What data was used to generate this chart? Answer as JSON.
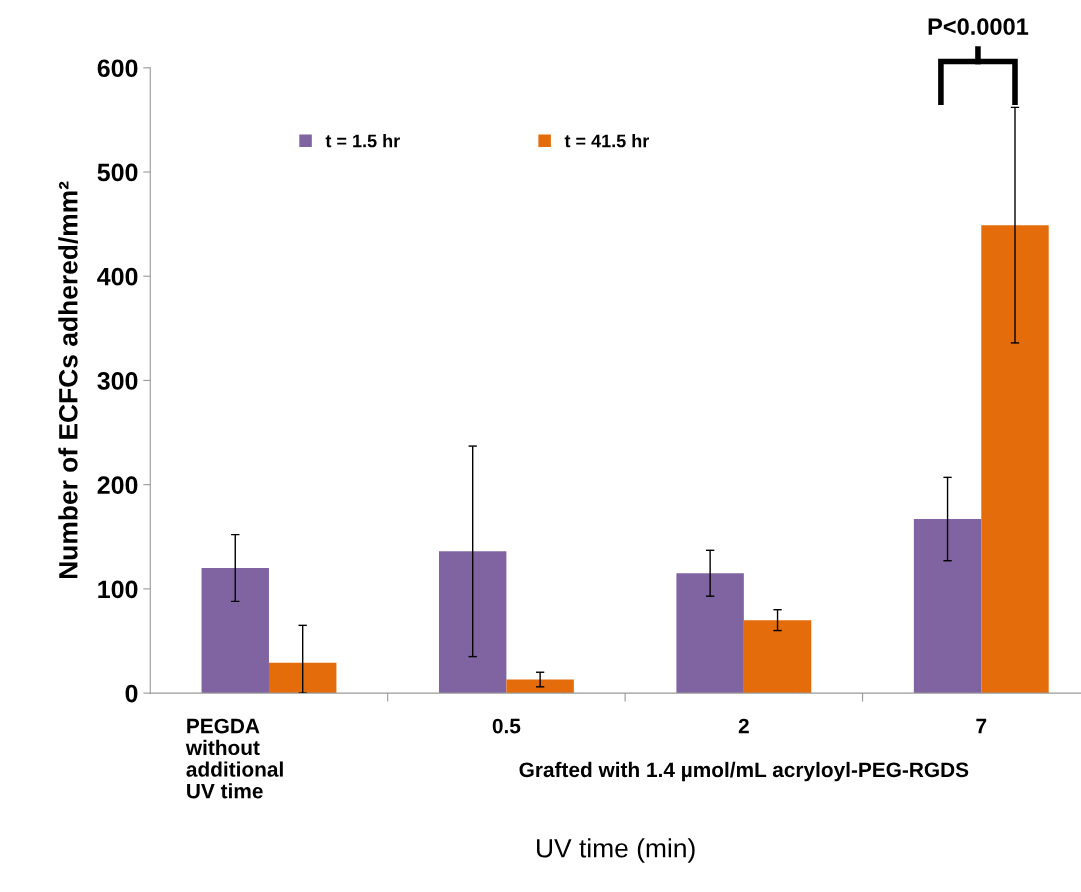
{
  "chart_data": {
    "type": "bar",
    "categories": [
      "PEGDA\nwithout\nadditional\nUV time",
      "0.5",
      "2",
      "7"
    ],
    "series": [
      {
        "name": "t = 1.5 hr",
        "color": "#8064a2",
        "values": [
          120,
          136,
          115,
          167
        ],
        "errors": [
          32,
          101,
          22,
          40
        ]
      },
      {
        "name": "t = 41.5 hr",
        "color": "#e46c0a",
        "values": [
          29,
          13,
          70,
          449
        ],
        "errors": [
          [
            0,
            65
          ],
          7,
          10,
          113
        ]
      }
    ],
    "xlabel": "UV time (min)",
    "ylabel": "Number of ECFCs adhered/mm²",
    "ylim": [
      0,
      600
    ],
    "yticks": [
      0,
      100,
      200,
      300,
      400,
      500,
      600
    ],
    "annotations": [
      "Grafted with 1.4 µmol/mL acryloyl-PEG-RGDS",
      "P<0.0001"
    ],
    "grid": false,
    "legend": "top left"
  }
}
